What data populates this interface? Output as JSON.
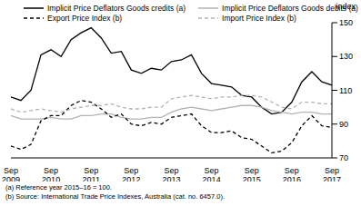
{
  "chart_data": {
    "type": "line",
    "y_label": "index",
    "annotations": [
      "(a) Reference year 2015–16 = 100.",
      "(b) Source: International Trade Price Indexes, Australia (cat. no. 6457.0)."
    ],
    "categories": [
      "Sep 2009",
      null,
      null,
      null,
      "Sep 2010",
      null,
      null,
      null,
      "Sep 2011",
      null,
      null,
      null,
      "Sep 2012",
      null,
      null,
      null,
      "Sep 2013",
      null,
      null,
      null,
      "Sep 2014",
      null,
      null,
      null,
      "Sep 2015",
      null,
      null,
      null,
      "Sep 2016",
      null,
      null,
      null,
      "Sep 2017"
    ],
    "series": [
      {
        "name": "Implicit Price Deflators Goods credits (a)",
        "color": "#000000",
        "line_style": "solid",
        "values": [
          106,
          104,
          110,
          131,
          134,
          130,
          140,
          144,
          147,
          141,
          132,
          133,
          122,
          120,
          123,
          122,
          127,
          128,
          131,
          120,
          114,
          113,
          112,
          107,
          106,
          100,
          96,
          97,
          103,
          115,
          121,
          115,
          113
        ]
      },
      {
        "name": "Implicit Price Deflators Goods debits (a)",
        "color": "#b3b3b3",
        "line_style": "solid",
        "values": [
          95,
          93,
          93,
          93,
          94,
          93,
          93,
          95,
          95,
          96,
          96,
          94,
          93,
          93,
          94,
          94,
          97,
          99,
          100,
          99,
          98,
          99,
          100,
          101,
          101,
          100,
          98,
          97,
          96,
          97,
          97,
          96,
          96
        ]
      },
      {
        "name": "Export Price Index (b)",
        "color": "#000000",
        "line_style": "dashed",
        "values": [
          77,
          75,
          78,
          92,
          95,
          95,
          101,
          104,
          103,
          99,
          94,
          96,
          90,
          89,
          91,
          90,
          94,
          95,
          96,
          89,
          85,
          85,
          86,
          82,
          81,
          77,
          73,
          74,
          79,
          89,
          95,
          89,
          88
        ]
      },
      {
        "name": "Import Price Index (b)",
        "color": "#b3b3b3",
        "line_style": "dashed",
        "values": [
          99,
          97,
          98,
          99,
          98,
          97,
          99,
          100,
          101,
          101,
          102,
          100,
          99,
          99,
          100,
          100,
          105,
          106,
          107,
          106,
          105,
          106,
          106,
          107,
          107,
          106,
          103,
          100,
          99,
          103,
          103,
          102,
          102
        ]
      }
    ],
    "ylim": [
      70,
      150
    ],
    "yticks": [
      70,
      90,
      110,
      130,
      150
    ],
    "grid": false,
    "legend": "top"
  }
}
